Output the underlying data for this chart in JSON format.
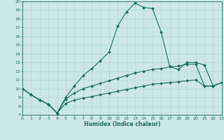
{
  "xlabel": "Humidex (Indice chaleur)",
  "xlim": [
    0,
    23
  ],
  "ylim": [
    7,
    20
  ],
  "xticks": [
    0,
    1,
    2,
    3,
    4,
    5,
    6,
    7,
    8,
    9,
    10,
    11,
    12,
    13,
    14,
    15,
    16,
    17,
    18,
    19,
    20,
    21,
    22,
    23
  ],
  "yticks": [
    7,
    8,
    9,
    10,
    11,
    12,
    13,
    14,
    15,
    16,
    17,
    18,
    19,
    20
  ],
  "bg_color": "#cce8e5",
  "line_color": "#1a6b5e",
  "grid_color": "#aad4d0",
  "line1_x": [
    0,
    1,
    2,
    3,
    4,
    5,
    6,
    7,
    8,
    9,
    10,
    11,
    12,
    13,
    14,
    15,
    16,
    17,
    18,
    19,
    20,
    21,
    22,
    23
  ],
  "line1_y": [
    10,
    9.3,
    8.7,
    8.2,
    7.2,
    9.0,
    10.3,
    11.5,
    12.3,
    13.2,
    14.2,
    17.2,
    18.8,
    19.8,
    19.3,
    19.2,
    16.5,
    12.5,
    12.2,
    13.0,
    13.0,
    12.7,
    10.3,
    10.7
  ],
  "line2_x": [
    0,
    1,
    2,
    3,
    4,
    5,
    6,
    7,
    8,
    9,
    10,
    11,
    12,
    13,
    14,
    15,
    16,
    17,
    18,
    19,
    20,
    21,
    22,
    23
  ],
  "line2_y": [
    10,
    9.3,
    8.7,
    8.2,
    7.2,
    8.8,
    9.5,
    10.0,
    10.3,
    10.6,
    10.9,
    11.2,
    11.5,
    11.8,
    12.0,
    12.2,
    12.3,
    12.5,
    12.6,
    12.8,
    12.8,
    10.3,
    10.3,
    10.7
  ],
  "line3_x": [
    0,
    1,
    2,
    3,
    4,
    5,
    6,
    7,
    8,
    9,
    10,
    11,
    12,
    13,
    14,
    15,
    16,
    17,
    18,
    19,
    20,
    21,
    22,
    23
  ],
  "line3_y": [
    10,
    9.3,
    8.7,
    8.2,
    7.2,
    8.3,
    8.7,
    8.9,
    9.1,
    9.3,
    9.5,
    9.7,
    9.9,
    10.1,
    10.3,
    10.5,
    10.6,
    10.7,
    10.8,
    10.9,
    11.0,
    10.3,
    10.3,
    10.7
  ]
}
